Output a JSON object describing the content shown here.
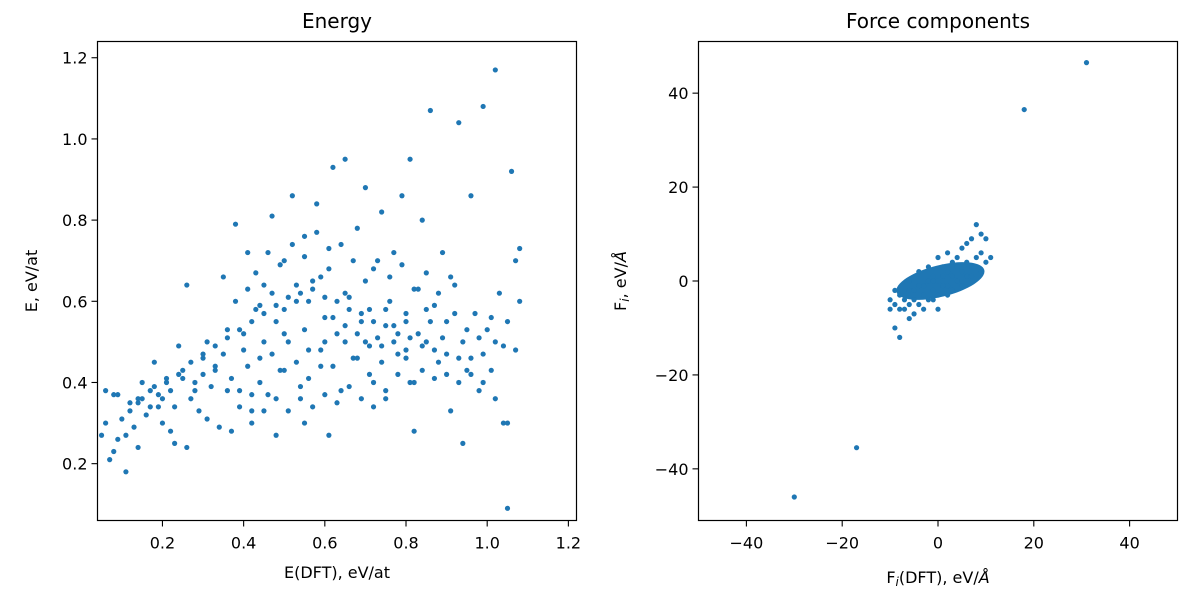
{
  "figure": {
    "charts": [
      {
        "title": "Energy",
        "xlabel": "E(DFT), eV/at",
        "ylabel": "E, eV/at"
      },
      {
        "title": "Force components"
      }
    ],
    "right_labels": {
      "x_prefix": "F",
      "x_sub": "i",
      "x_suffix": "(DFT), eV/",
      "x_unit": "Å",
      "y_prefix": "F",
      "y_sub": "i",
      "y_suffix": ", eV/",
      "y_unit": "Å"
    }
  },
  "chart_data": [
    {
      "type": "scatter",
      "title": "Energy",
      "xlabel": "E(DFT), eV/at",
      "ylabel": "E, eV/at",
      "xlim": [
        0.04,
        1.22
      ],
      "ylim": [
        0.06,
        1.24
      ],
      "xticks": [
        "0.2",
        "0.4",
        "0.6",
        "0.8",
        "1.0",
        "1.2"
      ],
      "yticks": [
        "0.2",
        "0.4",
        "0.6",
        "0.8",
        "1.0",
        "1.2"
      ],
      "xtick_values": [
        0.2,
        0.4,
        0.6,
        0.8,
        1.0,
        1.2
      ],
      "ytick_values": [
        0.2,
        0.4,
        0.6,
        0.8,
        1.0,
        1.2
      ],
      "color": "#1f77b4",
      "grid": false,
      "points": [
        [
          0.05,
          0.27
        ],
        [
          0.06,
          0.38
        ],
        [
          0.07,
          0.21
        ],
        [
          0.08,
          0.37
        ],
        [
          0.09,
          0.26
        ],
        [
          0.1,
          0.31
        ],
        [
          0.11,
          0.18
        ],
        [
          0.12,
          0.35
        ],
        [
          0.13,
          0.29
        ],
        [
          0.14,
          0.36
        ],
        [
          0.15,
          0.4
        ],
        [
          0.16,
          0.32
        ],
        [
          0.17,
          0.34
        ],
        [
          0.18,
          0.45
        ],
        [
          0.19,
          0.37
        ],
        [
          0.2,
          0.3
        ],
        [
          0.21,
          0.41
        ],
        [
          0.22,
          0.38
        ],
        [
          0.23,
          0.25
        ],
        [
          0.24,
          0.49
        ],
        [
          0.25,
          0.43
        ],
        [
          0.26,
          0.64
        ],
        [
          0.27,
          0.36
        ],
        [
          0.28,
          0.4
        ],
        [
          0.29,
          0.33
        ],
        [
          0.3,
          0.46
        ],
        [
          0.31,
          0.5
        ],
        [
          0.32,
          0.39
        ],
        [
          0.33,
          0.43
        ],
        [
          0.34,
          0.29
        ],
        [
          0.35,
          0.66
        ],
        [
          0.36,
          0.53
        ],
        [
          0.37,
          0.41
        ],
        [
          0.38,
          0.79
        ],
        [
          0.39,
          0.38
        ],
        [
          0.4,
          0.52
        ],
        [
          0.41,
          0.72
        ],
        [
          0.42,
          0.3
        ],
        [
          0.43,
          0.58
        ],
        [
          0.44,
          0.46
        ],
        [
          0.45,
          0.64
        ],
        [
          0.46,
          0.37
        ],
        [
          0.47,
          0.81
        ],
        [
          0.48,
          0.55
        ],
        [
          0.49,
          0.43
        ],
        [
          0.5,
          0.7
        ],
        [
          0.51,
          0.5
        ],
        [
          0.52,
          0.86
        ],
        [
          0.53,
          0.6
        ],
        [
          0.54,
          0.39
        ],
        [
          0.55,
          0.76
        ],
        [
          0.56,
          0.48
        ],
        [
          0.57,
          0.65
        ],
        [
          0.58,
          0.84
        ],
        [
          0.59,
          0.44
        ],
        [
          0.6,
          0.56
        ],
        [
          0.61,
          0.73
        ],
        [
          0.62,
          0.93
        ],
        [
          0.63,
          0.52
        ],
        [
          0.64,
          0.38
        ],
        [
          0.65,
          0.95
        ],
        [
          0.66,
          0.61
        ],
        [
          0.67,
          0.46
        ],
        [
          0.68,
          0.78
        ],
        [
          0.69,
          0.55
        ],
        [
          0.7,
          0.88
        ],
        [
          0.71,
          0.42
        ],
        [
          0.72,
          0.68
        ],
        [
          0.73,
          0.51
        ],
        [
          0.74,
          0.82
        ],
        [
          0.75,
          0.36
        ],
        [
          0.76,
          0.6
        ],
        [
          0.77,
          0.72
        ],
        [
          0.78,
          0.47
        ],
        [
          0.79,
          0.86
        ],
        [
          0.8,
          0.57
        ],
        [
          0.81,
          0.95
        ],
        [
          0.82,
          0.4
        ],
        [
          0.83,
          0.63
        ],
        [
          0.84,
          0.8
        ],
        [
          0.85,
          0.5
        ],
        [
          0.86,
          1.07
        ],
        [
          0.87,
          0.59
        ],
        [
          0.88,
          0.45
        ],
        [
          0.89,
          0.72
        ],
        [
          0.9,
          0.55
        ],
        [
          0.91,
          0.33
        ],
        [
          0.92,
          0.64
        ],
        [
          0.93,
          1.04
        ],
        [
          0.94,
          0.5
        ],
        [
          0.95,
          0.43
        ],
        [
          0.96,
          0.86
        ],
        [
          0.97,
          0.57
        ],
        [
          0.98,
          0.38
        ],
        [
          0.99,
          1.08
        ],
        [
          1.0,
          0.53
        ],
        [
          1.01,
          0.43
        ],
        [
          1.02,
          1.17
        ],
        [
          1.03,
          0.62
        ],
        [
          1.04,
          0.3
        ],
        [
          1.05,
          0.09
        ],
        [
          1.06,
          0.92
        ],
        [
          1.07,
          0.48
        ],
        [
          1.08,
          0.6
        ],
        [
          1.08,
          0.73
        ],
        [
          1.05,
          0.3
        ],
        [
          0.94,
          0.25
        ],
        [
          0.82,
          0.28
        ],
        [
          0.72,
          0.34
        ],
        [
          0.61,
          0.27
        ],
        [
          0.55,
          0.3
        ],
        [
          0.48,
          0.27
        ],
        [
          0.42,
          0.33
        ],
        [
          0.37,
          0.28
        ],
        [
          0.31,
          0.31
        ],
        [
          0.26,
          0.24
        ],
        [
          0.22,
          0.28
        ],
        [
          0.19,
          0.34
        ],
        [
          0.14,
          0.24
        ],
        [
          0.11,
          0.27
        ],
        [
          0.08,
          0.23
        ],
        [
          0.06,
          0.3
        ],
        [
          0.09,
          0.37
        ],
        [
          0.12,
          0.33
        ],
        [
          0.15,
          0.36
        ],
        [
          0.18,
          0.39
        ],
        [
          0.21,
          0.4
        ],
        [
          0.24,
          0.42
        ],
        [
          0.27,
          0.45
        ],
        [
          0.3,
          0.47
        ],
        [
          0.33,
          0.49
        ],
        [
          0.36,
          0.51
        ],
        [
          0.39,
          0.53
        ],
        [
          0.42,
          0.55
        ],
        [
          0.45,
          0.57
        ],
        [
          0.48,
          0.59
        ],
        [
          0.51,
          0.61
        ],
        [
          0.54,
          0.62
        ],
        [
          0.57,
          0.63
        ],
        [
          0.6,
          0.61
        ],
        [
          0.63,
          0.6
        ],
        [
          0.66,
          0.58
        ],
        [
          0.69,
          0.57
        ],
        [
          0.72,
          0.55
        ],
        [
          0.75,
          0.54
        ],
        [
          0.78,
          0.52
        ],
        [
          0.81,
          0.51
        ],
        [
          0.84,
          0.49
        ],
        [
          0.87,
          0.48
        ],
        [
          0.9,
          0.47
        ],
        [
          0.93,
          0.46
        ],
        [
          0.96,
          0.46
        ],
        [
          0.99,
          0.47
        ],
        [
          1.02,
          0.5
        ],
        [
          1.05,
          0.55
        ],
        [
          1.07,
          0.7
        ],
        [
          0.41,
          0.44
        ],
        [
          0.44,
          0.4
        ],
        [
          0.47,
          0.47
        ],
        [
          0.5,
          0.43
        ],
        [
          0.53,
          0.45
        ],
        [
          0.56,
          0.41
        ],
        [
          0.59,
          0.48
        ],
        [
          0.62,
          0.44
        ],
        [
          0.65,
          0.5
        ],
        [
          0.68,
          0.46
        ],
        [
          0.71,
          0.49
        ],
        [
          0.74,
          0.45
        ],
        [
          0.77,
          0.5
        ],
        [
          0.8,
          0.46
        ],
        [
          0.43,
          0.67
        ],
        [
          0.46,
          0.72
        ],
        [
          0.49,
          0.69
        ],
        [
          0.52,
          0.74
        ],
        [
          0.55,
          0.71
        ],
        [
          0.58,
          0.77
        ],
        [
          0.61,
          0.68
        ],
        [
          0.64,
          0.74
        ],
        [
          0.67,
          0.7
        ],
        [
          0.7,
          0.65
        ],
        [
          0.73,
          0.7
        ],
        [
          0.76,
          0.66
        ],
        [
          0.79,
          0.69
        ],
        [
          0.82,
          0.63
        ],
        [
          0.85,
          0.67
        ],
        [
          0.88,
          0.62
        ],
        [
          0.91,
          0.66
        ],
        [
          0.36,
          0.38
        ],
        [
          0.39,
          0.34
        ],
        [
          0.42,
          0.37
        ],
        [
          0.45,
          0.33
        ],
        [
          0.48,
          0.36
        ],
        [
          0.51,
          0.33
        ],
        [
          0.54,
          0.36
        ],
        [
          0.57,
          0.34
        ],
        [
          0.6,
          0.37
        ],
        [
          0.63,
          0.35
        ],
        [
          0.66,
          0.39
        ],
        [
          0.69,
          0.36
        ],
        [
          0.72,
          0.4
        ],
        [
          0.75,
          0.38
        ],
        [
          0.78,
          0.42
        ],
        [
          0.81,
          0.4
        ],
        [
          0.84,
          0.43
        ],
        [
          0.87,
          0.41
        ],
        [
          0.9,
          0.42
        ],
        [
          0.93,
          0.4
        ],
        [
          0.96,
          0.42
        ],
        [
          0.99,
          0.4
        ],
        [
          1.02,
          0.36
        ],
        [
          0.38,
          0.6
        ],
        [
          0.41,
          0.63
        ],
        [
          0.44,
          0.59
        ],
        [
          0.47,
          0.62
        ],
        [
          0.5,
          0.58
        ],
        [
          0.53,
          0.64
        ],
        [
          0.56,
          0.6
        ],
        [
          0.59,
          0.66
        ],
        [
          0.62,
          0.56
        ],
        [
          0.65,
          0.62
        ],
        [
          0.68,
          0.52
        ],
        [
          0.71,
          0.58
        ],
        [
          0.74,
          0.49
        ],
        [
          0.77,
          0.54
        ],
        [
          0.8,
          0.48
        ],
        [
          0.83,
          0.52
        ],
        [
          0.86,
          0.55
        ],
        [
          0.89,
          0.51
        ],
        [
          0.92,
          0.57
        ],
        [
          0.95,
          0.53
        ],
        [
          0.98,
          0.51
        ],
        [
          1.01,
          0.56
        ],
        [
          1.04,
          0.49
        ],
        [
          0.2,
          0.36
        ],
        [
          0.17,
          0.38
        ],
        [
          0.14,
          0.35
        ],
        [
          0.23,
          0.34
        ],
        [
          0.28,
          0.38
        ],
        [
          0.25,
          0.41
        ],
        [
          0.3,
          0.42
        ],
        [
          0.33,
          0.44
        ],
        [
          0.35,
          0.47
        ],
        [
          0.4,
          0.48
        ],
        [
          0.45,
          0.5
        ],
        [
          0.5,
          0.52
        ],
        [
          0.55,
          0.53
        ],
        [
          0.6,
          0.5
        ],
        [
          0.65,
          0.54
        ],
        [
          0.7,
          0.5
        ],
        [
          0.75,
          0.58
        ],
        [
          0.8,
          0.55
        ],
        [
          0.85,
          0.58
        ]
      ]
    },
    {
      "type": "scatter",
      "title": "Force components",
      "xlabel": "Fi(DFT), eV/Å",
      "ylabel": "Fi, eV/Å",
      "xlim": [
        -50,
        50
      ],
      "ylim": [
        -51,
        51
      ],
      "xticks": [
        "−40",
        "−20",
        "0",
        "20",
        "40"
      ],
      "yticks": [
        "−40",
        "−20",
        "0",
        "20",
        "40"
      ],
      "xtick_values": [
        -40,
        -20,
        0,
        20,
        40
      ],
      "ytick_values": [
        -40,
        -20,
        0,
        20,
        40
      ],
      "color": "#1f77b4",
      "grid": false,
      "cluster": {
        "x_range": [
          -10,
          11
        ],
        "y_range": [
          -12,
          12
        ]
      },
      "points": [
        [
          31,
          46.5
        ],
        [
          18,
          36.5
        ],
        [
          -17,
          -35.5
        ],
        [
          -30,
          -46
        ],
        [
          -10,
          -4
        ],
        [
          -9,
          -5
        ],
        [
          -8,
          -3
        ],
        [
          -7,
          -6
        ],
        [
          -6,
          -2
        ],
        [
          -5,
          -4
        ],
        [
          -4,
          -1
        ],
        [
          -3,
          -3
        ],
        [
          -2,
          0
        ],
        [
          -1,
          -2
        ],
        [
          0,
          0
        ],
        [
          1,
          1
        ],
        [
          2,
          2
        ],
        [
          3,
          1
        ],
        [
          4,
          3
        ],
        [
          5,
          2
        ],
        [
          6,
          4
        ],
        [
          7,
          3
        ],
        [
          8,
          5
        ],
        [
          9,
          6
        ],
        [
          10,
          4
        ],
        [
          11,
          5
        ],
        [
          -9,
          -10
        ],
        [
          -8,
          -12
        ],
        [
          -6,
          -8
        ],
        [
          -5,
          -7
        ],
        [
          -3,
          -6
        ],
        [
          8,
          12
        ],
        [
          9,
          10
        ],
        [
          7,
          9
        ],
        [
          6,
          8
        ],
        [
          5,
          7
        ],
        [
          10,
          9
        ],
        [
          -4,
          -5
        ],
        [
          -2,
          -4
        ],
        [
          0,
          -3
        ],
        [
          2,
          -1
        ],
        [
          4,
          0
        ],
        [
          6,
          1
        ],
        [
          3,
          4
        ],
        [
          1,
          3
        ],
        [
          -1,
          1
        ],
        [
          -3,
          -1
        ],
        [
          -5,
          -2
        ],
        [
          -7,
          -4
        ],
        [
          -6,
          -5
        ],
        [
          -8,
          -6
        ],
        [
          0,
          5
        ],
        [
          2,
          6
        ],
        [
          4,
          5
        ],
        [
          -2,
          3
        ],
        [
          -4,
          2
        ],
        [
          -6,
          0
        ],
        [
          0,
          -6
        ],
        [
          2,
          -3
        ],
        [
          -1,
          -4
        ],
        [
          5,
          -1
        ],
        [
          7,
          1
        ],
        [
          9,
          2
        ],
        [
          -9,
          -2
        ],
        [
          -10,
          -6
        ],
        [
          3,
          -2
        ],
        [
          1,
          -1
        ],
        [
          -1,
          0
        ]
      ]
    }
  ]
}
